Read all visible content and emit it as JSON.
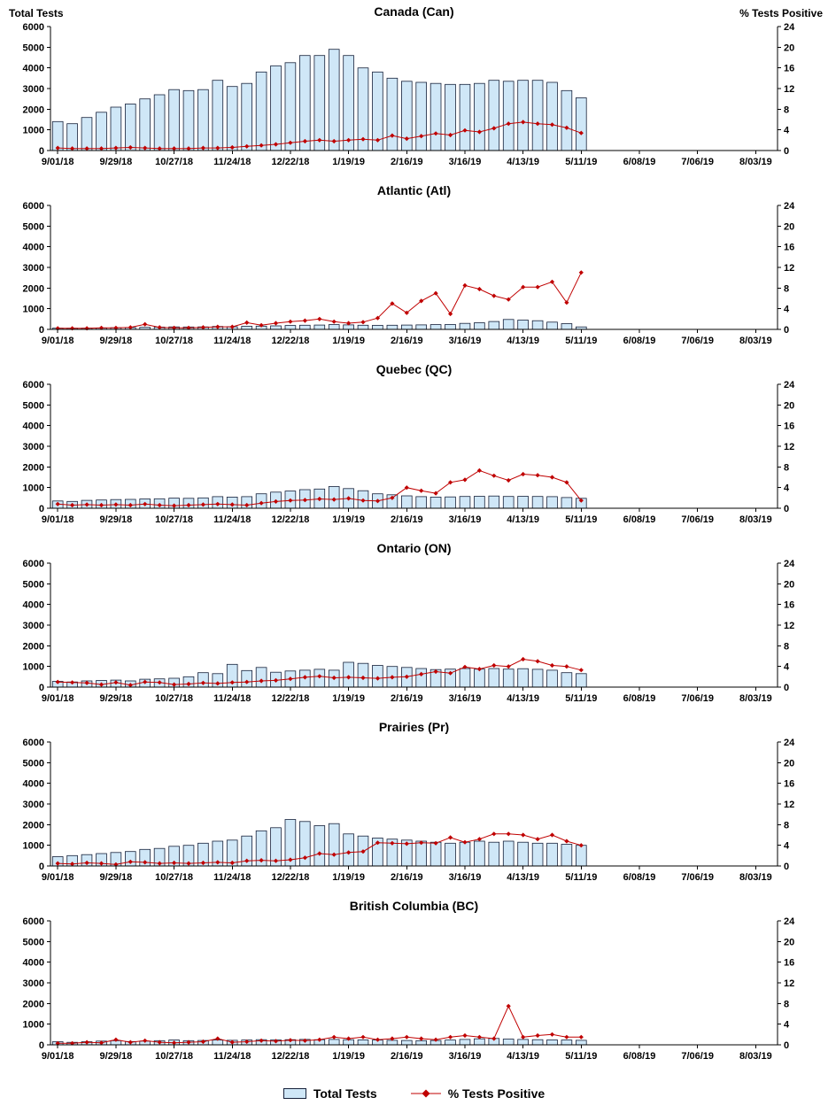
{
  "page": {
    "left_axis_title": "Total Tests",
    "right_axis_title": "% Tests Positive"
  },
  "legend": {
    "bar_label": "Total Tests",
    "line_label": "% Tests Positive"
  },
  "colors": {
    "bar_fill": "#cfe7f7",
    "bar_stroke": "#16213a",
    "line_color": "#c00000",
    "axis_color": "#000000"
  },
  "axes": {
    "left_axis_label": "Total Tests",
    "right_axis_label": "% Tests Positive",
    "left_max": 6000,
    "right_max": 24,
    "left_ticks": [
      0,
      1000,
      2000,
      3000,
      4000,
      5000,
      6000
    ],
    "right_ticks": [
      0,
      4,
      8,
      12,
      16,
      20,
      24
    ],
    "x_tick_labels": [
      "9/01/18",
      "9/29/18",
      "10/27/18",
      "11/24/18",
      "12/22/18",
      "1/19/19",
      "2/16/19",
      "3/16/19",
      "4/13/19",
      "5/11/19",
      "6/08/19",
      "7/06/19",
      "8/03/19"
    ],
    "x_tick_interval": 4,
    "n_slots": 50,
    "data_weeks": 37,
    "data_range": [
      "9/01/18",
      "5/11/19"
    ],
    "grid": "off",
    "legend_position": "bottom-center"
  },
  "chart_data": [
    {
      "type": "bar+line",
      "title": "Canada (Can)",
      "bar_series_name": "Total Tests",
      "line_series_name": "% Tests Positive",
      "bars": [
        1400,
        1300,
        1600,
        1850,
        2100,
        2250,
        2500,
        2700,
        2950,
        2900,
        2950,
        3400,
        3100,
        3250,
        3800,
        4100,
        4250,
        4600,
        4600,
        4900,
        4600,
        4000,
        3800,
        3500,
        3350,
        3300,
        3250,
        3200,
        3200,
        3250,
        3400,
        3350,
        3400,
        3400,
        3300,
        2900,
        2550
      ],
      "line": [
        0.5,
        0.4,
        0.4,
        0.4,
        0.5,
        0.6,
        0.5,
        0.4,
        0.4,
        0.4,
        0.5,
        0.5,
        0.6,
        0.8,
        1.0,
        1.2,
        1.5,
        1.8,
        2.0,
        1.8,
        2.0,
        2.2,
        2.0,
        2.9,
        2.3,
        2.8,
        3.3,
        3.0,
        3.9,
        3.6,
        4.3,
        5.2,
        5.5,
        5.2,
        5.0,
        4.4,
        3.4
      ]
    },
    {
      "type": "bar+line",
      "title": "Atlantic (Atl)",
      "bar_series_name": "Total Tests",
      "line_series_name": "% Tests Positive",
      "bars": [
        60,
        55,
        60,
        70,
        80,
        90,
        100,
        110,
        120,
        115,
        120,
        140,
        130,
        150,
        160,
        170,
        190,
        200,
        210,
        230,
        220,
        200,
        195,
        200,
        210,
        220,
        230,
        240,
        290,
        320,
        380,
        480,
        450,
        420,
        350,
        280,
        120
      ],
      "line": [
        0.2,
        0.2,
        0.2,
        0.3,
        0.3,
        0.4,
        1.0,
        0.4,
        0.3,
        0.3,
        0.4,
        0.5,
        0.5,
        1.3,
        0.8,
        1.2,
        1.5,
        1.7,
        2.0,
        1.5,
        1.2,
        1.4,
        2.2,
        5.0,
        3.2,
        5.5,
        7.0,
        3.0,
        8.5,
        7.8,
        6.5,
        5.8,
        8.2,
        8.2,
        9.2,
        5.2,
        11.0
      ]
    },
    {
      "type": "bar+line",
      "title": "Quebec (QC)",
      "bar_series_name": "Total Tests",
      "line_series_name": "% Tests Positive",
      "bars": [
        350,
        330,
        380,
        400,
        420,
        430,
        450,
        460,
        490,
        480,
        500,
        560,
        540,
        560,
        700,
        780,
        830,
        900,
        930,
        1050,
        950,
        850,
        700,
        650,
        600,
        560,
        540,
        550,
        570,
        580,
        590,
        570,
        580,
        570,
        560,
        520,
        480
      ],
      "line": [
        0.8,
        0.6,
        0.7,
        0.6,
        0.7,
        0.6,
        0.8,
        0.6,
        0.5,
        0.6,
        0.7,
        0.8,
        0.7,
        0.6,
        1.0,
        1.3,
        1.5,
        1.6,
        1.8,
        1.7,
        1.9,
        1.5,
        1.4,
        2.0,
        4.0,
        3.4,
        2.9,
        5.0,
        5.5,
        7.3,
        6.3,
        5.4,
        6.6,
        6.4,
        6.0,
        5.0,
        1.5
      ]
    },
    {
      "type": "bar+line",
      "title": "Ontario (ON)",
      "bar_series_name": "Total Tests",
      "line_series_name": "% Tests Positive",
      "bars": [
        280,
        250,
        300,
        320,
        340,
        300,
        380,
        400,
        430,
        500,
        700,
        650,
        1100,
        800,
        950,
        720,
        780,
        820,
        860,
        820,
        1200,
        1150,
        1050,
        1000,
        950,
        900,
        850,
        870,
        900,
        870,
        900,
        870,
        890,
        860,
        820,
        700,
        650
      ],
      "line": [
        1.0,
        0.9,
        0.8,
        0.5,
        0.9,
        0.4,
        1.0,
        0.9,
        0.5,
        0.6,
        0.8,
        0.7,
        0.9,
        1.0,
        1.2,
        1.3,
        1.6,
        1.9,
        2.1,
        1.8,
        1.9,
        1.8,
        1.7,
        1.9,
        2.0,
        2.5,
        3.0,
        2.7,
        3.9,
        3.5,
        4.2,
        4.0,
        5.4,
        5.0,
        4.2,
        4.0,
        3.3
      ]
    },
    {
      "type": "bar+line",
      "title": "Prairies (Pr)",
      "bar_series_name": "Total Tests",
      "line_series_name": "% Tests Positive",
      "bars": [
        450,
        500,
        550,
        600,
        650,
        700,
        800,
        850,
        950,
        1000,
        1100,
        1200,
        1250,
        1450,
        1700,
        1850,
        2250,
        2150,
        1950,
        2050,
        1550,
        1450,
        1350,
        1300,
        1250,
        1200,
        1150,
        1100,
        1150,
        1200,
        1150,
        1200,
        1150,
        1100,
        1100,
        1050,
        1000
      ],
      "line": [
        0.5,
        0.4,
        0.6,
        0.5,
        0.3,
        0.8,
        0.7,
        0.5,
        0.6,
        0.5,
        0.6,
        0.7,
        0.6,
        1.0,
        1.1,
        1.0,
        1.2,
        1.6,
        2.4,
        2.2,
        2.6,
        2.8,
        4.5,
        4.4,
        4.3,
        4.5,
        4.4,
        5.5,
        4.6,
        5.2,
        6.2,
        6.2,
        6.0,
        5.2,
        6.0,
        4.8,
        4.0
      ]
    },
    {
      "type": "bar+line",
      "title": "British Columbia (BC)",
      "bar_series_name": "Total Tests",
      "line_series_name": "% Tests Positive",
      "bars": [
        150,
        120,
        150,
        180,
        200,
        160,
        180,
        200,
        230,
        200,
        210,
        230,
        220,
        230,
        250,
        240,
        250,
        260,
        250,
        260,
        250,
        240,
        230,
        220,
        210,
        200,
        210,
        230,
        260,
        290,
        310,
        280,
        260,
        250,
        240,
        230,
        220
      ],
      "line": [
        0.3,
        0.3,
        0.5,
        0.4,
        1.0,
        0.5,
        0.8,
        0.5,
        0.4,
        0.5,
        0.6,
        1.2,
        0.5,
        0.6,
        0.8,
        0.7,
        0.9,
        0.8,
        1.0,
        1.5,
        1.2,
        1.5,
        1.0,
        1.2,
        1.5,
        1.2,
        1.0,
        1.5,
        1.8,
        1.5,
        1.2,
        7.5,
        1.5,
        1.8,
        2.0,
        1.5,
        1.5
      ]
    }
  ]
}
